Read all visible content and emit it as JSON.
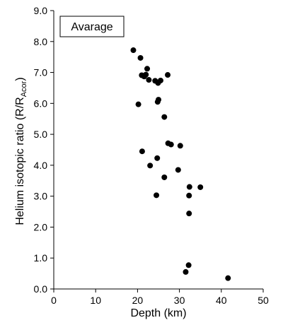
{
  "chart_data": {
    "type": "scatter",
    "title": "",
    "xlabel": "Depth (km)",
    "ylabel": {
      "main": "Helium isotopic ratio (R/R",
      "subscript": "Acor",
      "close": ")"
    },
    "xlim": [
      0,
      50
    ],
    "ylim": [
      0,
      9
    ],
    "x_ticks": [
      "0",
      "10",
      "20",
      "30",
      "40",
      "50"
    ],
    "y_ticks": [
      "0.0",
      "1.0",
      "2.0",
      "3.0",
      "4.0",
      "5.0",
      "6.0",
      "7.0",
      "8.0",
      "9.0"
    ],
    "grid": false,
    "legend": {
      "label": "Avarage",
      "placement": "top-left"
    },
    "marker_color": "#000000",
    "series": [
      {
        "name": "Avarage",
        "points": [
          [
            19.0,
            7.72
          ],
          [
            20.7,
            7.47
          ],
          [
            22.3,
            7.12
          ],
          [
            21.0,
            6.91
          ],
          [
            21.6,
            6.87
          ],
          [
            22.0,
            6.93
          ],
          [
            22.7,
            6.76
          ],
          [
            24.2,
            6.73
          ],
          [
            24.9,
            6.66
          ],
          [
            25.5,
            6.74
          ],
          [
            27.2,
            6.92
          ],
          [
            24.8,
            6.05
          ],
          [
            25.0,
            6.12
          ],
          [
            20.2,
            5.97
          ],
          [
            26.4,
            5.56
          ],
          [
            27.3,
            4.71
          ],
          [
            28.0,
            4.67
          ],
          [
            30.2,
            4.63
          ],
          [
            21.1,
            4.45
          ],
          [
            24.7,
            4.23
          ],
          [
            23.0,
            3.99
          ],
          [
            29.7,
            3.85
          ],
          [
            26.4,
            3.61
          ],
          [
            32.4,
            3.3
          ],
          [
            35.0,
            3.29
          ],
          [
            24.5,
            3.03
          ],
          [
            32.3,
            3.02
          ],
          [
            32.3,
            2.44
          ],
          [
            32.2,
            0.77
          ],
          [
            31.5,
            0.55
          ],
          [
            41.6,
            0.35
          ]
        ]
      }
    ]
  }
}
